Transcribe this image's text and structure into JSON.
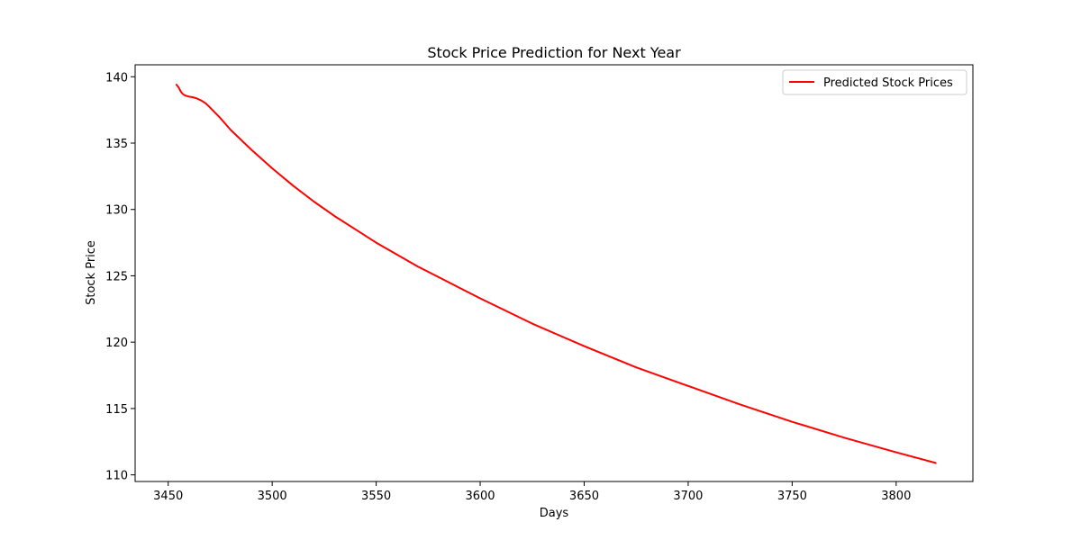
{
  "chart_data": {
    "type": "line",
    "title": "Stock Price Prediction for Next Year",
    "xlabel": "Days",
    "ylabel": "Stock Price",
    "xlim": [
      3434.1,
      3836.9
    ],
    "ylim": [
      109.5,
      140.9
    ],
    "xticks": [
      3450,
      3500,
      3550,
      3600,
      3650,
      3700,
      3750,
      3800
    ],
    "yticks": [
      110,
      115,
      120,
      125,
      130,
      135,
      140
    ],
    "grid": false,
    "legend_position": "top-right",
    "series": [
      {
        "name": "Predicted Stock Prices",
        "color": "#ff0000",
        "x": [
          3454,
          3455,
          3456,
          3457,
          3458,
          3460,
          3462,
          3464,
          3466,
          3468,
          3470,
          3475,
          3480,
          3490,
          3500,
          3510,
          3520,
          3530,
          3540,
          3550,
          3560,
          3570,
          3580,
          3590,
          3600,
          3625,
          3650,
          3675,
          3700,
          3725,
          3750,
          3775,
          3800,
          3819
        ],
        "y": [
          139.4,
          139.2,
          138.9,
          138.7,
          138.6,
          138.5,
          138.45,
          138.35,
          138.2,
          138.0,
          137.7,
          136.9,
          136.0,
          134.5,
          133.1,
          131.8,
          130.6,
          129.5,
          128.5,
          127.5,
          126.6,
          125.7,
          124.9,
          124.1,
          123.3,
          121.4,
          119.7,
          118.1,
          116.7,
          115.3,
          114.0,
          112.8,
          111.7,
          110.9
        ]
      }
    ]
  }
}
